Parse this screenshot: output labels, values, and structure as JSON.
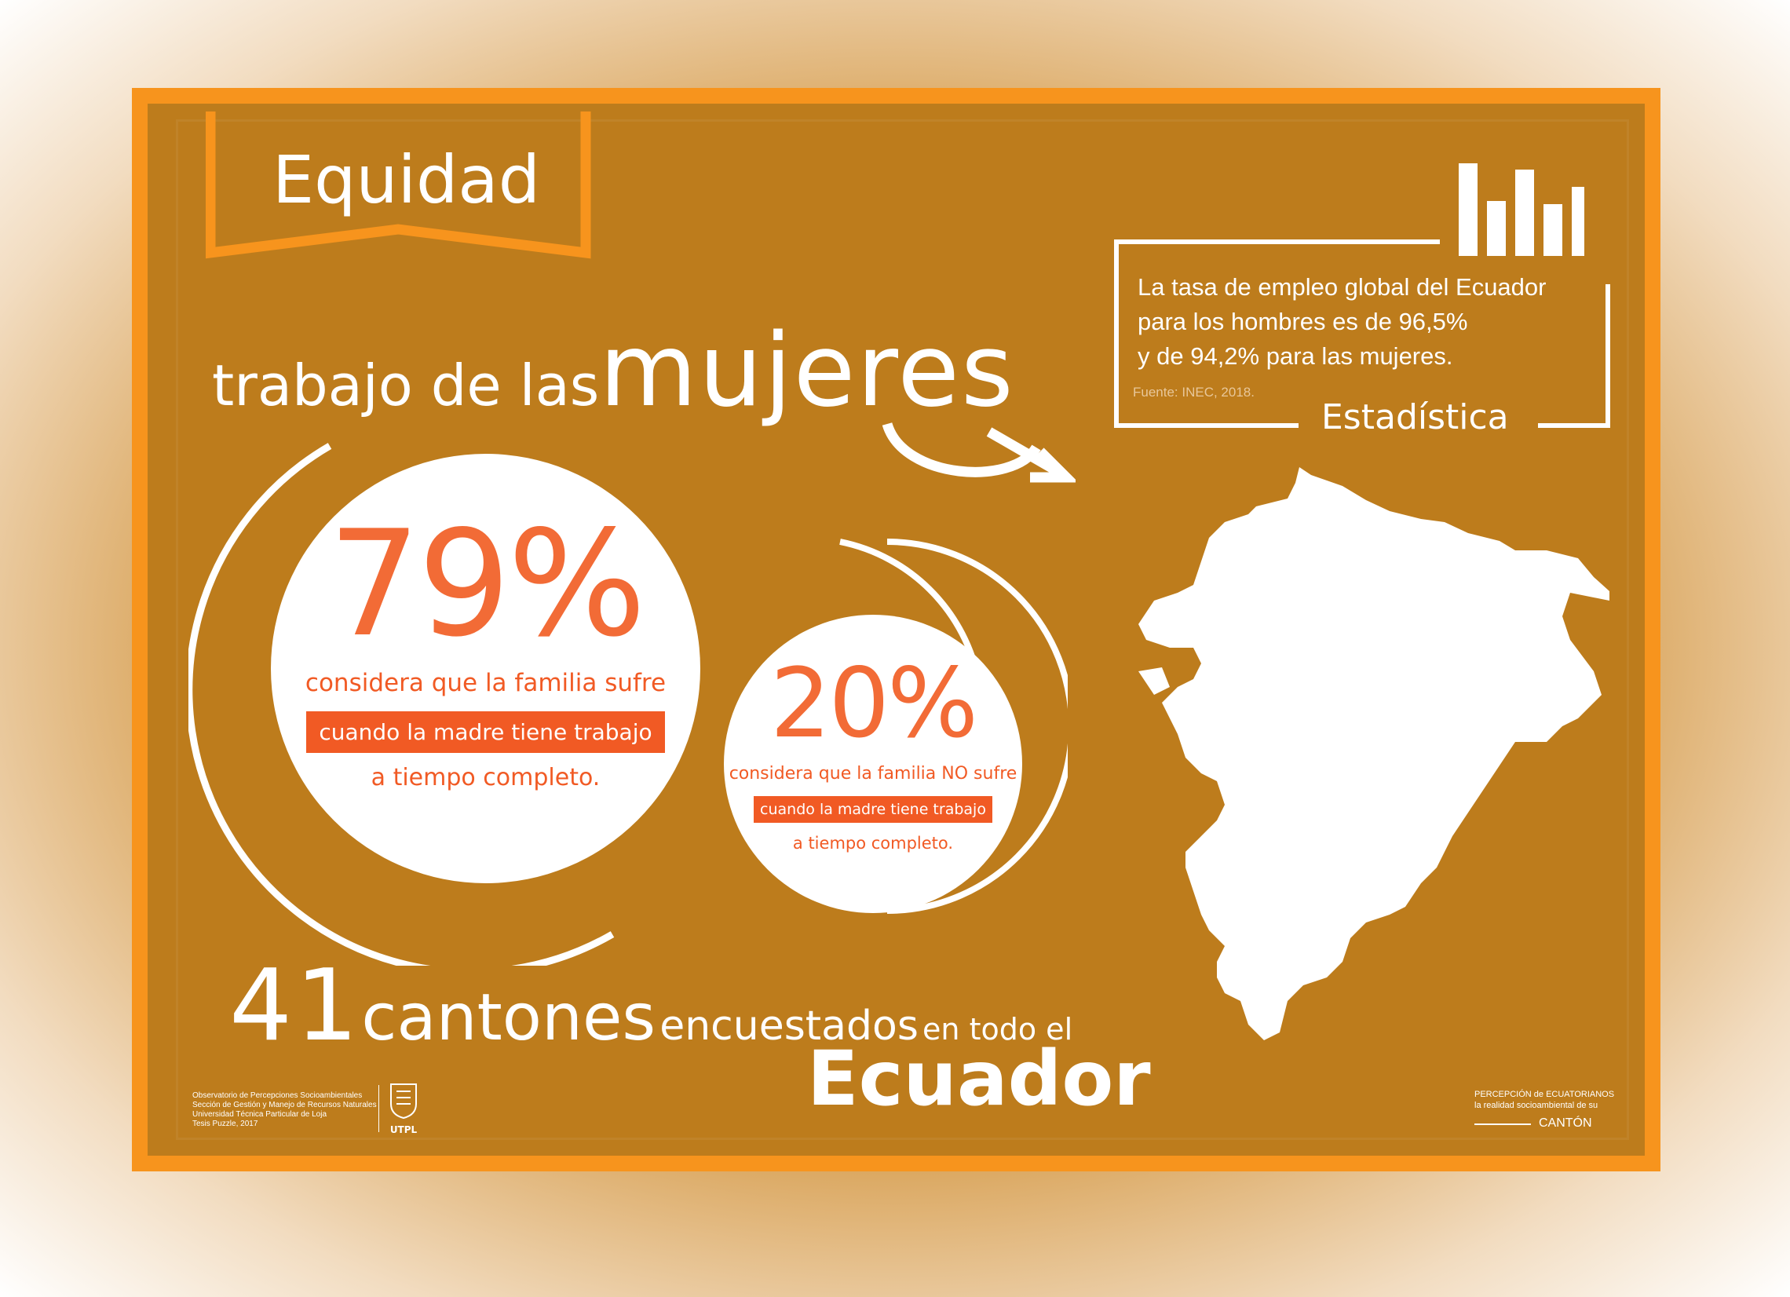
{
  "title": "Equidad",
  "headline": {
    "prefix": "trabajo de las",
    "emphasis": "mujeres"
  },
  "stat79": {
    "value": "79%",
    "line1": "considera que la familia sufre",
    "highlight": "cuando la madre tiene trabajo",
    "line3": "a tiempo completo."
  },
  "stat20": {
    "value": "20%",
    "line1": "considera que la familia NO sufre",
    "highlight": "cuando la madre tiene trabajo",
    "line3": "a tiempo completo."
  },
  "statistic": {
    "lines": [
      "La tasa de empleo global del Ecuador",
      "para los hombres es de 96,5%",
      "y de 94,2% para las mujeres."
    ],
    "source": "Fuente: INEC, 2018.",
    "label": "Estadística"
  },
  "survey": {
    "number": "41",
    "word": "cantones",
    "verb": "encuestados",
    "tail": "en todo el",
    "country": "Ecuador"
  },
  "footer": {
    "left": [
      "Observatorio de Percepciones Socioambientales",
      "Sección de Gestión y Manejo de Recursos Naturales",
      "Universidad Técnica Particular de Loja",
      "Tesis Puzzle, 2017"
    ],
    "logo_text": "UTPL",
    "right1": "PERCEPCIÓN de ECUATORIANOS",
    "right2": "la realidad socioambiental de su",
    "right3": "CANTÓN"
  },
  "colors": {
    "frame": "#f7941d",
    "background": "#bd7c1c",
    "accent": "#f15a24"
  },
  "icons": [
    "bar-chart-icon",
    "arrow-icon",
    "ecuador-map-icon",
    "utpl-shield-icon"
  ]
}
